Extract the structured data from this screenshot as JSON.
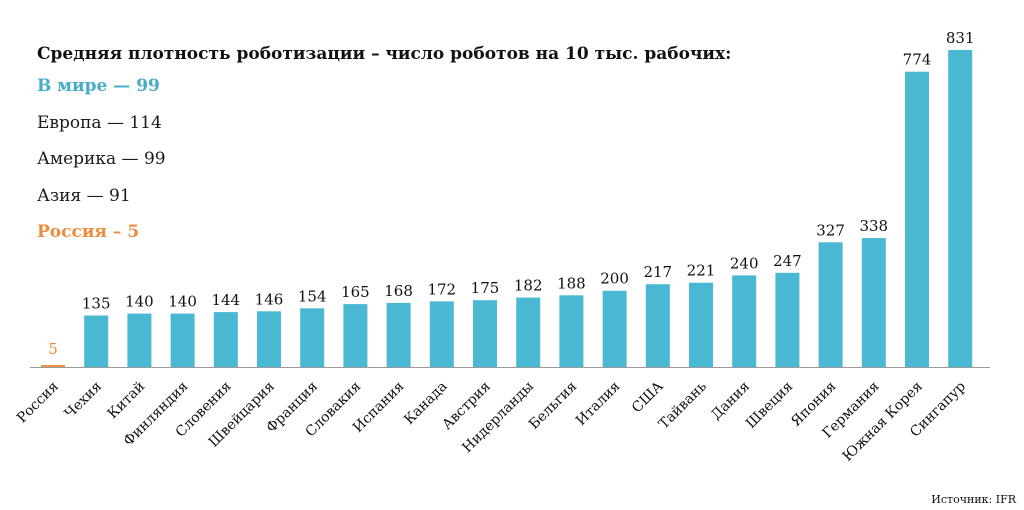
{
  "chart_data": {
    "type": "bar",
    "title": "Средняя плотность роботизации – число роботов на 10 тыс. рабочих:",
    "xlabel": "",
    "ylabel": "",
    "ylim": [
      0,
      900
    ],
    "grid": false,
    "categories": [
      "Россия",
      "Чехия",
      "Китай",
      "Финляндия",
      "Словения",
      "Швейцария",
      "Франция",
      "Словакия",
      "Испания",
      "Канада",
      "Австрия",
      "Нидерланды",
      "Бельгия",
      "Италия",
      "США",
      "Тайвань",
      "Дания",
      "Швеция",
      "Япония",
      "Германия",
      "Южная Корея",
      "Сингапур"
    ],
    "values": [
      5,
      135,
      140,
      140,
      144,
      146,
      154,
      165,
      168,
      172,
      175,
      182,
      188,
      200,
      217,
      221,
      240,
      247,
      327,
      338,
      774,
      831
    ],
    "highlight_index": 0,
    "colors": {
      "bar": "#4bb8d3",
      "highlight": "#f08b3c",
      "axis": "#9a9a9a",
      "text": "#111111"
    },
    "legend": {
      "world": "В мире — 99",
      "europe": "Европа —  114",
      "america": "Америка — 99",
      "asia": "Азия — 91",
      "russia": "Россия – 5"
    },
    "source": "Источник: IFR"
  }
}
